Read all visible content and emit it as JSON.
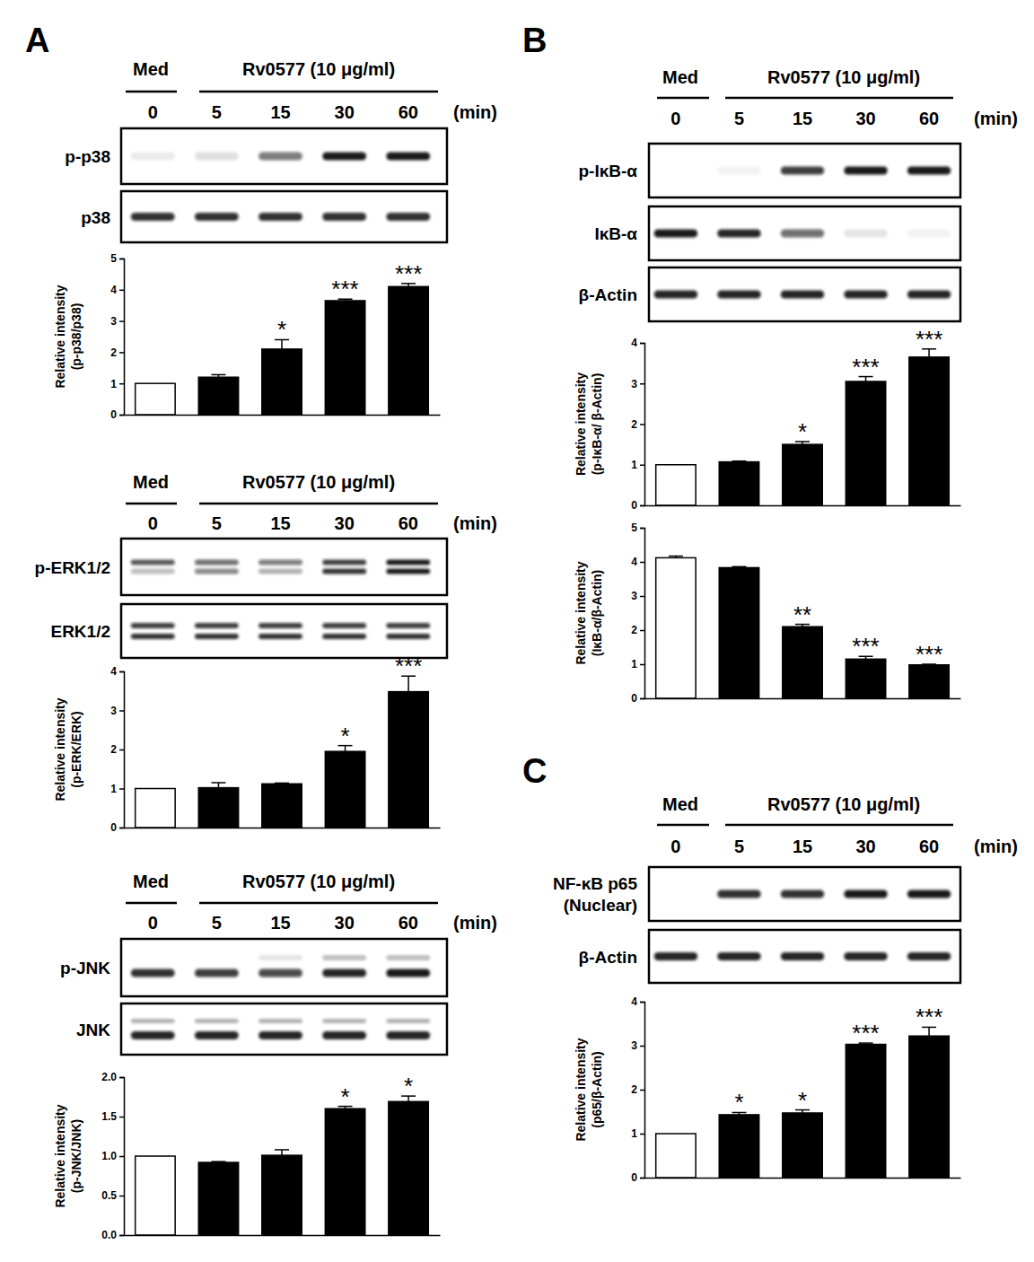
{
  "panel_labels": [
    "A",
    "B",
    "C"
  ],
  "blots": [
    {
      "control": "Med",
      "treatment": "Rv0577 (10 μg/ml)",
      "times": [
        0,
        5,
        15,
        30,
        60
      ],
      "time_unit": "(min)",
      "rows": [
        [
          "p-p38"
        ],
        [
          "p38"
        ]
      ]
    },
    {
      "control": "Med",
      "treatment": "Rv0577 (10 μg/ml)",
      "times": [
        0,
        5,
        15,
        30,
        60
      ],
      "time_unit": "(min)",
      "rows": [
        [
          "p-ERK1/2"
        ],
        [
          "ERK1/2"
        ]
      ]
    },
    {
      "control": "Med",
      "treatment": "Rv0577 (10 μg/ml)",
      "times": [
        0,
        5,
        15,
        30,
        60
      ],
      "time_unit": "(min)",
      "rows": [
        [
          "p-JNK"
        ],
        [
          "JNK"
        ]
      ]
    },
    {
      "control": "Med",
      "treatment": "Rv0577 (10 μg/ml)",
      "times": [
        0,
        5,
        15,
        30,
        60
      ],
      "time_unit": "(min)",
      "rows": [
        [
          "p-IκB-α"
        ],
        [
          "IκB-α"
        ],
        [
          "β-Actin"
        ]
      ]
    },
    {
      "control": "Med",
      "treatment": "Rv0577 (10 μg/ml)",
      "times": [
        0,
        5,
        15,
        30,
        60
      ],
      "time_unit": "(min)",
      "rows": [
        [
          "NF-κB p65",
          "(Nuclear)"
        ],
        [
          "β-Actin"
        ]
      ]
    }
  ],
  "chart_data": [
    {
      "type": "bar",
      "categories": [
        null,
        null,
        null,
        null,
        null
      ],
      "ylabel": [
        "Relative intensity",
        "(p-p38/p38)"
      ],
      "values": [
        1,
        1.2,
        2.1,
        3.65,
        4.1
      ],
      "errors": [
        null,
        0.08,
        0.3,
        0.05,
        0.1
      ],
      "colors": [
        "#ffffff",
        "#000000",
        "#000000",
        "#000000",
        "#000000"
      ],
      "annotations": [
        null,
        null,
        "*",
        "***",
        "***"
      ],
      "ylim": [
        0,
        5
      ],
      "yticks": [
        0,
        1,
        2,
        3,
        4,
        5
      ]
    },
    {
      "type": "bar",
      "categories": [
        null,
        null,
        null,
        null,
        null
      ],
      "ylabel": [
        "Relative intensity",
        "(p-ERK/ERK)"
      ],
      "values": [
        1,
        1.02,
        1.12,
        1.95,
        3.48
      ],
      "errors": [
        null,
        0.13,
        0.02,
        0.15,
        0.4
      ],
      "colors": [
        "#ffffff",
        "#000000",
        "#000000",
        "#000000",
        "#000000"
      ],
      "annotations": [
        null,
        null,
        null,
        "*",
        "***"
      ],
      "ylim": [
        0,
        4
      ],
      "yticks": [
        0,
        1,
        2,
        3,
        4
      ]
    },
    {
      "type": "bar",
      "categories": [
        null,
        null,
        null,
        null,
        null
      ],
      "ylabel": [
        "Relative intensity",
        "(p-JNK/JNK)"
      ],
      "values": [
        1,
        0.92,
        1.01,
        1.6,
        1.69
      ],
      "errors": [
        null,
        0.01,
        0.07,
        0.03,
        0.07
      ],
      "colors": [
        "#ffffff",
        "#000000",
        "#000000",
        "#000000",
        "#000000"
      ],
      "annotations": [
        null,
        null,
        null,
        "*",
        "*"
      ],
      "ylim": [
        0,
        2
      ],
      "yticks": [
        {
          "value": 0,
          "label": "0.0"
        },
        0.5,
        {
          "value": 1,
          "label": "1.0"
        },
        1.5,
        {
          "value": 2,
          "label": "2.0"
        }
      ]
    },
    {
      "type": "bar",
      "categories": [
        null,
        null,
        null,
        null,
        null
      ],
      "ylabel": [
        "Relative intensity",
        "(p-IκB-α/ β-Actin)"
      ],
      "values": [
        1,
        1.07,
        1.5,
        3.05,
        3.65
      ],
      "errors": [
        null,
        0.02,
        0.07,
        0.12,
        0.2
      ],
      "colors": [
        "#ffffff",
        "#000000",
        "#000000",
        "#000000",
        "#000000"
      ],
      "annotations": [
        null,
        null,
        "*",
        "***",
        "***"
      ],
      "ylim": [
        0,
        4
      ],
      "yticks": [
        0,
        1,
        2,
        3,
        4
      ]
    },
    {
      "type": "bar",
      "categories": [
        null,
        null,
        null,
        null,
        null
      ],
      "ylabel": [
        "Relative intensity",
        "(IκB-α/β-Actin)"
      ],
      "values": [
        4.12,
        3.83,
        2.1,
        1.15,
        0.98
      ],
      "errors": [
        0.05,
        0.03,
        0.07,
        0.08,
        0.02
      ],
      "colors": [
        "#ffffff",
        "#000000",
        "#000000",
        "#000000",
        "#000000"
      ],
      "annotations": [
        null,
        null,
        "**",
        "***",
        "***"
      ],
      "ylim": [
        0,
        5
      ],
      "yticks": [
        0,
        1,
        2,
        3,
        4,
        5
      ]
    },
    {
      "type": "bar",
      "categories": [
        null,
        null,
        null,
        null,
        null
      ],
      "ylabel": [
        "Relative intensity",
        "(p65/β-Actin)"
      ],
      "values": [
        1,
        1.43,
        1.47,
        3.03,
        3.22
      ],
      "errors": [
        null,
        0.05,
        0.07,
        0.03,
        0.2
      ],
      "colors": [
        "#ffffff",
        "#000000",
        "#000000",
        "#000000",
        "#000000"
      ],
      "annotations": [
        null,
        "*",
        "*",
        "***",
        "***"
      ],
      "ylim": [
        0,
        4
      ],
      "yticks": [
        0,
        1,
        2,
        3,
        4
      ]
    }
  ]
}
